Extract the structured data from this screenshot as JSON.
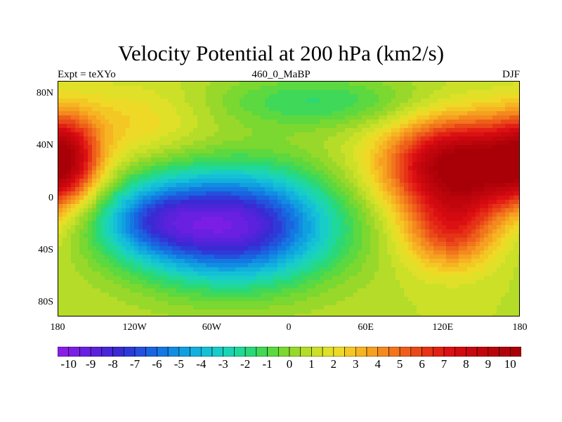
{
  "chart_data": {
    "type": "heatmap",
    "title": "Velocity Potential at 200 hPa (km2/s)",
    "subtitle_left": "Expt = teXYo",
    "subtitle_center": "460_0_MaBP",
    "subtitle_right": "DJF",
    "x_range": [
      -180,
      180
    ],
    "y_range": [
      -90,
      90
    ],
    "x_ticks": [
      {
        "v": -180,
        "label": "180"
      },
      {
        "v": -120,
        "label": "120W"
      },
      {
        "v": -60,
        "label": "60W"
      },
      {
        "v": 0,
        "label": "0"
      },
      {
        "v": 60,
        "label": "60E"
      },
      {
        "v": 120,
        "label": "120E"
      },
      {
        "v": 180,
        "label": "180"
      }
    ],
    "y_ticks": [
      {
        "v": 80,
        "label": "80N"
      },
      {
        "v": 40,
        "label": "40N"
      },
      {
        "v": 0,
        "label": "0"
      },
      {
        "v": -40,
        "label": "40S"
      },
      {
        "v": -80,
        "label": "80S"
      }
    ],
    "colorbar": {
      "min": -10.5,
      "max": 10.5,
      "step": 0.5,
      "labels": [
        "-10",
        "-9",
        "-8",
        "-7",
        "-6",
        "-5",
        "-4",
        "-3",
        "-2",
        "-1",
        "0",
        "1",
        "2",
        "3",
        "4",
        "5",
        "6",
        "7",
        "8",
        "9",
        "10"
      ],
      "colors": [
        "#8a1ee6",
        "#7a1ee6",
        "#6a20e0",
        "#5a22dc",
        "#4a26d8",
        "#3a2ad4",
        "#2e3ad8",
        "#2450dc",
        "#1a64e0",
        "#1478e2",
        "#128ce2",
        "#10a0e0",
        "#12b0dc",
        "#14c0d6",
        "#18ccc8",
        "#1cd4b4",
        "#20d898",
        "#2ad878",
        "#40d858",
        "#5cd840",
        "#7ad830",
        "#98d82a",
        "#b4dc28",
        "#cce028",
        "#e0e028",
        "#eeda26",
        "#f4c824",
        "#f6b422",
        "#f6a020",
        "#f48a1e",
        "#f2741c",
        "#ee5e1a",
        "#ea4818",
        "#e63216",
        "#e22014",
        "#dc1012",
        "#d20a10",
        "#c8080e",
        "#c0060c",
        "#b8040a",
        "#b00208",
        "#a80006"
      ]
    },
    "field": {
      "description_units": "km2/s",
      "centers": [
        {
          "lon": -45,
          "lat": -20,
          "value": -10.2,
          "sx": 55,
          "sy": 30
        },
        {
          "lon": -110,
          "lat": -15,
          "value": -3.5,
          "sx": 30,
          "sy": 20
        },
        {
          "lon": 135,
          "lat": 25,
          "value": 10.2,
          "sx": 40,
          "sy": 25
        },
        {
          "lon": 125,
          "lat": -25,
          "value": 4.5,
          "sx": 25,
          "sy": 20
        },
        {
          "lon": -175,
          "lat": 32,
          "value": 5.5,
          "sx": 18,
          "sy": 22
        },
        {
          "lon": 20,
          "lat": 75,
          "value": -2.5,
          "sx": 60,
          "sy": 15
        },
        {
          "lon": -120,
          "lat": 60,
          "value": 1.5,
          "sx": 40,
          "sy": 20
        }
      ],
      "background": 1.0
    }
  }
}
